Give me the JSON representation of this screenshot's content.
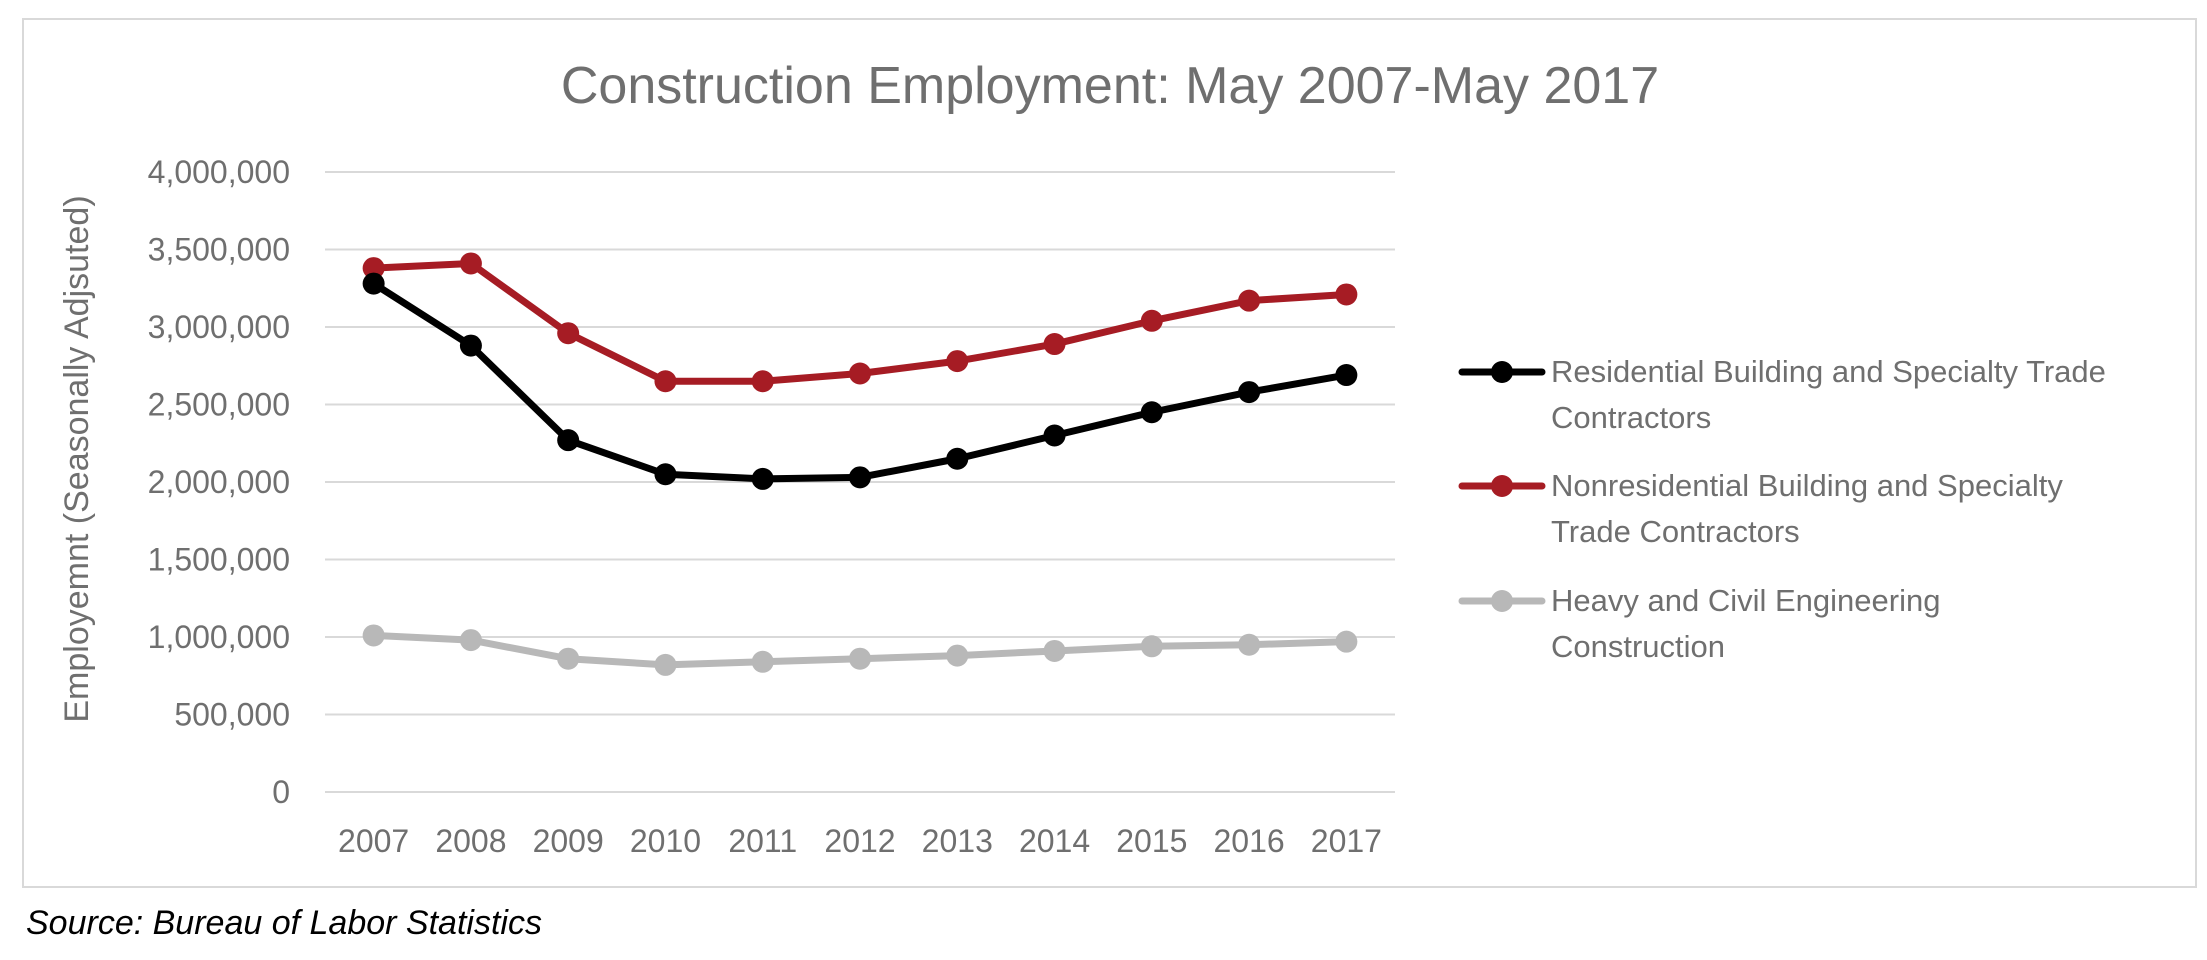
{
  "chart_data": {
    "type": "line",
    "title": "Construction Employment: May 2007-May 2017",
    "xlabel": "",
    "ylabel": "Employemnt (Seasonally Adjsuted)",
    "categories": [
      "2007",
      "2008",
      "2009",
      "2010",
      "2011",
      "2012",
      "2013",
      "2014",
      "2015",
      "2016",
      "2017"
    ],
    "ylim": [
      0,
      4000000
    ],
    "yticks": [
      0,
      500000,
      1000000,
      1500000,
      2000000,
      2500000,
      3000000,
      3500000,
      4000000
    ],
    "ytick_labels": [
      "0",
      "500,000",
      "1,000,000",
      "1,500,000",
      "2,000,000",
      "2,500,000",
      "3,000,000",
      "3,500,000",
      "4,000,000"
    ],
    "grid": "horizontal",
    "legend_position": "right",
    "series": [
      {
        "name": "Residential Building and Specialty Trade Contractors",
        "legend_lines": [
          "Residential Building and Specialty Trade",
          "Contractors"
        ],
        "color": "#000000",
        "values": [
          3280000,
          2880000,
          2270000,
          2050000,
          2020000,
          2030000,
          2150000,
          2300000,
          2450000,
          2580000,
          2690000
        ]
      },
      {
        "name": "Nonresidential Building and Specialty Trade Contractors",
        "legend_lines": [
          "Nonresidential Building and Specialty",
          "Trade Contractors"
        ],
        "color": "#a61c24",
        "values": [
          3380000,
          3410000,
          2960000,
          2650000,
          2650000,
          2700000,
          2780000,
          2890000,
          3040000,
          3170000,
          3210000
        ]
      },
      {
        "name": "Heavy and Civil Engineering Construction",
        "legend_lines": [
          "Heavy and Civil Engineering",
          "Construction"
        ],
        "color": "#b8b8b8",
        "values": [
          1010000,
          980000,
          860000,
          820000,
          840000,
          860000,
          880000,
          910000,
          940000,
          950000,
          970000
        ]
      }
    ]
  },
  "source": "Source: Bureau of Labor Statistics"
}
